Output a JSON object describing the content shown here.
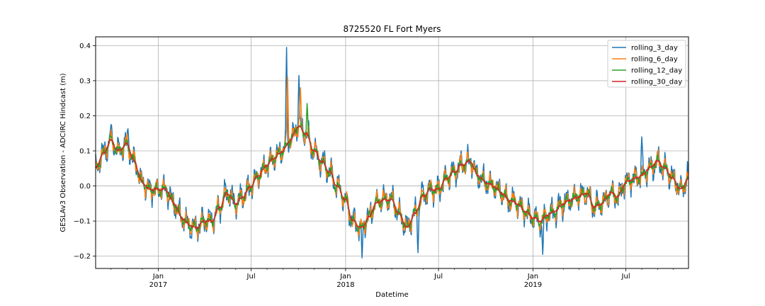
{
  "chart_data": {
    "type": "line",
    "title": "8725520 FL Fort Myers",
    "xlabel": "Datetime",
    "ylabel": "GESLAv3 Observation - ADCIRC Hindcast (m)",
    "xlim": [
      "2016-09-01",
      "2019-10-31"
    ],
    "ylim": [
      -0.235,
      0.425
    ],
    "yticks": [
      -0.2,
      -0.1,
      0.0,
      0.1,
      0.2,
      0.3,
      0.4
    ],
    "ytick_labels": [
      "−0.2",
      "−0.1",
      "0.0",
      "0.1",
      "0.2",
      "0.3",
      "0.4"
    ],
    "xticks_major": [
      {
        "date": "2017-01-01",
        "label": "Jan",
        "sublabel": "2017"
      },
      {
        "date": "2017-07-01",
        "label": "Jul",
        "sublabel": ""
      },
      {
        "date": "2018-01-01",
        "label": "Jan",
        "sublabel": "2018"
      },
      {
        "date": "2018-07-01",
        "label": "Jul",
        "sublabel": ""
      },
      {
        "date": "2019-01-01",
        "label": "Jan",
        "sublabel": "2019"
      },
      {
        "date": "2019-07-01",
        "label": "Jul",
        "sublabel": ""
      }
    ],
    "grid": true,
    "legend_position": "top-right",
    "series_keypoints": {
      "x": [
        "2016-09-01",
        "2016-09-15",
        "2016-10-01",
        "2016-10-15",
        "2016-11-01",
        "2016-11-15",
        "2016-12-01",
        "2016-12-15",
        "2017-01-01",
        "2017-01-15",
        "2017-02-01",
        "2017-02-15",
        "2017-03-01",
        "2017-03-15",
        "2017-04-01",
        "2017-04-15",
        "2017-05-01",
        "2017-05-15",
        "2017-06-01",
        "2017-06-15",
        "2017-07-01",
        "2017-07-15",
        "2017-08-01",
        "2017-08-15",
        "2017-09-01",
        "2017-09-15",
        "2017-10-01",
        "2017-10-15",
        "2017-11-01",
        "2017-11-15",
        "2017-12-01",
        "2017-12-15",
        "2018-01-01",
        "2018-01-15",
        "2018-02-01",
        "2018-02-15",
        "2018-03-01",
        "2018-03-15",
        "2018-04-01",
        "2018-04-15",
        "2018-05-01",
        "2018-05-15",
        "2018-06-01",
        "2018-06-15",
        "2018-07-01",
        "2018-07-15",
        "2018-08-01",
        "2018-08-15",
        "2018-09-01",
        "2018-09-15",
        "2018-10-01",
        "2018-10-15",
        "2018-11-01",
        "2018-11-15",
        "2018-12-01",
        "2018-12-15",
        "2019-01-01",
        "2019-01-15",
        "2019-02-01",
        "2019-02-15",
        "2019-03-01",
        "2019-03-15",
        "2019-04-01",
        "2019-04-15",
        "2019-05-01",
        "2019-05-15",
        "2019-06-01",
        "2019-06-15",
        "2019-07-01",
        "2019-07-15",
        "2019-08-01",
        "2019-08-15",
        "2019-09-01",
        "2019-09-15",
        "2019-10-01",
        "2019-10-15",
        "2019-10-31"
      ],
      "base": [
        0.05,
        0.09,
        0.13,
        0.1,
        0.12,
        0.07,
        0.01,
        -0.01,
        -0.01,
        -0.01,
        -0.05,
        -0.09,
        -0.11,
        -0.12,
        -0.1,
        -0.1,
        -0.06,
        -0.02,
        -0.05,
        -0.03,
        0.0,
        0.03,
        0.06,
        0.08,
        0.1,
        0.13,
        0.17,
        0.15,
        0.1,
        0.07,
        0.04,
        0.0,
        -0.04,
        -0.1,
        -0.12,
        -0.09,
        -0.05,
        -0.04,
        -0.04,
        -0.08,
        -0.12,
        -0.08,
        -0.03,
        -0.01,
        -0.01,
        0.02,
        0.04,
        0.06,
        0.07,
        0.03,
        0.01,
        0.0,
        -0.02,
        -0.04,
        -0.05,
        -0.07,
        -0.09,
        -0.1,
        -0.08,
        -0.07,
        -0.05,
        -0.04,
        -0.03,
        -0.02,
        -0.06,
        -0.05,
        -0.02,
        -0.03,
        0.01,
        0.02,
        0.03,
        0.05,
        0.07,
        0.05,
        0.02,
        -0.01,
        0.02
      ]
    },
    "series": [
      {
        "name": "rolling_3_day",
        "color": "#1f77b4",
        "noise_amplitude": 0.045,
        "seed": 11
      },
      {
        "name": "rolling_6_day",
        "color": "#ff7f0e",
        "noise_amplitude": 0.032,
        "seed": 23
      },
      {
        "name": "rolling_12_day",
        "color": "#2ca02c",
        "noise_amplitude": 0.018,
        "seed": 37
      },
      {
        "name": "rolling_30_day",
        "color": "#d62728",
        "noise_amplitude": 0.005,
        "seed": 51
      }
    ],
    "spikes": [
      {
        "date": "2016-10-01",
        "value": 0.175,
        "series": "rolling_3_day"
      },
      {
        "date": "2016-11-03",
        "value": 0.163,
        "series": "rolling_3_day"
      },
      {
        "date": "2017-09-08",
        "value": 0.395,
        "series": "rolling_3_day"
      },
      {
        "date": "2017-09-10",
        "value": 0.31,
        "series": "rolling_6_day"
      },
      {
        "date": "2017-10-02",
        "value": 0.315,
        "series": "rolling_3_day"
      },
      {
        "date": "2017-10-05",
        "value": 0.28,
        "series": "rolling_6_day"
      },
      {
        "date": "2017-10-18",
        "value": 0.235,
        "series": "rolling_12_day"
      },
      {
        "date": "2018-02-02",
        "value": -0.205,
        "series": "rolling_3_day"
      },
      {
        "date": "2018-05-22",
        "value": -0.19,
        "series": "rolling_3_day"
      },
      {
        "date": "2019-01-20",
        "value": -0.195,
        "series": "rolling_3_day"
      },
      {
        "date": "2019-08-01",
        "value": 0.14,
        "series": "rolling_3_day"
      }
    ]
  }
}
